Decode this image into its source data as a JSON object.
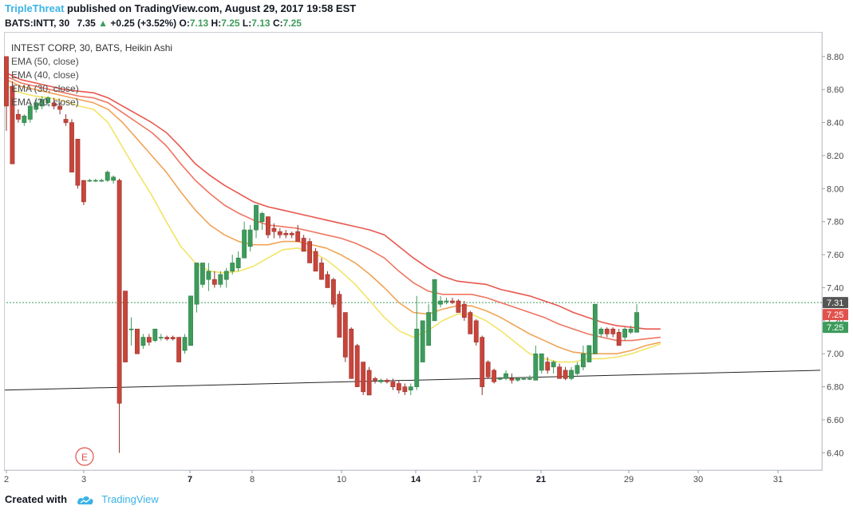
{
  "header": {
    "author": "TripleThreat",
    "published": "published on TradingView.com, August 29, 2017 19:58 EST"
  },
  "quote": {
    "symbol": "BATS:INTT, 30",
    "last": "7.35",
    "change": "+0.25 (+3.52%)",
    "open_label": "O:",
    "open": "7.13",
    "high_label": "H:",
    "high": "7.25",
    "low_label": "L:",
    "low": "7.13",
    "close_label": "C:",
    "close": "7.25"
  },
  "legend": {
    "title": "INTEST CORP, 30, BATS, Heikin Ashi",
    "items": [
      "EMA (50, close)",
      "EMA (40, close)",
      "EMA (30, close)",
      "EMA (20, close)"
    ]
  },
  "footer": {
    "created_with": "Created with",
    "brand": "TradingView"
  },
  "earnings_marker": "E",
  "price_badges": {
    "top": "7.31",
    "mid": "7.25",
    "bottom": "7.25"
  },
  "colors": {
    "up": "#3d9c5b",
    "down": "#c8453b",
    "ema50": "#e8574e",
    "ema40": "#ef7560",
    "ema30": "#f1a356",
    "ema20": "#f2e465",
    "badge_top": "#555555",
    "badge_mid": "#e0524b",
    "badge_bottom": "#3d9c5b"
  },
  "chart_data": {
    "type": "candlestick",
    "title": "INTEST CORP, 30, BATS, Heikin Ashi",
    "y_ticks": [
      "8.80",
      "8.60",
      "8.40",
      "8.20",
      "8.00",
      "7.80",
      "7.60",
      "7.40",
      "7.20",
      "7.00",
      "6.80",
      "6.60",
      "6.40"
    ],
    "ylim": [
      6.31,
      8.92
    ],
    "x_ticks": [
      "2",
      "3",
      "7",
      "8",
      "10",
      "14",
      "17",
      "21",
      "29",
      "30",
      "31"
    ],
    "grid": false,
    "candles": [
      {
        "o": 8.8,
        "h": 8.8,
        "l": 8.35,
        "c": 8.5
      },
      {
        "o": 8.62,
        "h": 8.65,
        "l": 8.15,
        "c": 8.15
      },
      {
        "o": 8.45,
        "h": 8.48,
        "l": 8.4,
        "c": 8.42
      },
      {
        "o": 8.4,
        "h": 8.45,
        "l": 8.38,
        "c": 8.44
      },
      {
        "o": 8.42,
        "h": 8.52,
        "l": 8.4,
        "c": 8.5
      },
      {
        "o": 8.48,
        "h": 8.55,
        "l": 8.46,
        "c": 8.52
      },
      {
        "o": 8.5,
        "h": 8.56,
        "l": 8.48,
        "c": 8.54
      },
      {
        "o": 8.52,
        "h": 8.56,
        "l": 8.5,
        "c": 8.55
      },
      {
        "o": 8.52,
        "h": 8.55,
        "l": 8.48,
        "c": 8.5
      },
      {
        "o": 8.5,
        "h": 8.52,
        "l": 8.45,
        "c": 8.48
      },
      {
        "o": 8.42,
        "h": 8.45,
        "l": 8.38,
        "c": 8.4
      },
      {
        "o": 8.4,
        "h": 8.42,
        "l": 8.1,
        "c": 8.1
      },
      {
        "o": 8.3,
        "h": 8.3,
        "l": 8.0,
        "c": 8.02
      },
      {
        "o": 8.05,
        "h": 8.05,
        "l": 7.9,
        "c": 7.92
      },
      {
        "o": 8.05,
        "h": 8.06,
        "l": 8.04,
        "c": 8.05
      },
      {
        "o": 8.05,
        "h": 8.06,
        "l": 8.04,
        "c": 8.05
      },
      {
        "o": 8.05,
        "h": 8.06,
        "l": 8.04,
        "c": 8.05
      },
      {
        "o": 8.05,
        "h": 8.11,
        "l": 8.04,
        "c": 8.1
      },
      {
        "o": 8.05,
        "h": 8.08,
        "l": 8.03,
        "c": 8.07
      },
      {
        "o": 8.05,
        "h": 8.06,
        "l": 6.4,
        "c": 6.7
      },
      {
        "o": 7.38,
        "h": 7.38,
        "l": 6.95,
        "c": 6.95
      },
      {
        "o": 7.15,
        "h": 7.22,
        "l": 7.05,
        "c": 7.15
      },
      {
        "o": 7.15,
        "h": 7.15,
        "l": 7.0,
        "c": 7.0
      },
      {
        "o": 7.05,
        "h": 7.12,
        "l": 7.03,
        "c": 7.1
      },
      {
        "o": 7.1,
        "h": 7.12,
        "l": 7.05,
        "c": 7.07
      },
      {
        "o": 7.08,
        "h": 7.15,
        "l": 7.07,
        "c": 7.15
      },
      {
        "o": 7.1,
        "h": 7.12,
        "l": 7.08,
        "c": 7.1
      },
      {
        "o": 7.1,
        "h": 7.11,
        "l": 7.08,
        "c": 7.09
      },
      {
        "o": 7.1,
        "h": 7.11,
        "l": 7.08,
        "c": 7.09
      },
      {
        "o": 7.1,
        "h": 7.1,
        "l": 6.95,
        "c": 6.95
      },
      {
        "o": 7.02,
        "h": 7.12,
        "l": 7.0,
        "c": 7.1
      },
      {
        "o": 7.05,
        "h": 7.35,
        "l": 7.05,
        "c": 7.35
      },
      {
        "o": 7.3,
        "h": 7.55,
        "l": 7.25,
        "c": 7.55
      },
      {
        "o": 7.42,
        "h": 7.55,
        "l": 7.4,
        "c": 7.55
      },
      {
        "o": 7.45,
        "h": 7.55,
        "l": 7.38,
        "c": 7.5
      },
      {
        "o": 7.45,
        "h": 7.5,
        "l": 7.4,
        "c": 7.42
      },
      {
        "o": 7.42,
        "h": 7.5,
        "l": 7.4,
        "c": 7.48
      },
      {
        "o": 7.45,
        "h": 7.52,
        "l": 7.4,
        "c": 7.5
      },
      {
        "o": 7.5,
        "h": 7.6,
        "l": 7.48,
        "c": 7.55
      },
      {
        "o": 7.52,
        "h": 7.62,
        "l": 7.5,
        "c": 7.58
      },
      {
        "o": 7.58,
        "h": 7.8,
        "l": 7.58,
        "c": 7.75
      },
      {
        "o": 7.65,
        "h": 7.78,
        "l": 7.62,
        "c": 7.75
      },
      {
        "o": 7.75,
        "h": 7.9,
        "l": 7.7,
        "c": 7.9
      },
      {
        "o": 7.8,
        "h": 7.86,
        "l": 7.75,
        "c": 7.85
      },
      {
        "o": 7.83,
        "h": 7.83,
        "l": 7.7,
        "c": 7.72
      },
      {
        "o": 7.76,
        "h": 7.79,
        "l": 7.7,
        "c": 7.74
      },
      {
        "o": 7.74,
        "h": 7.76,
        "l": 7.7,
        "c": 7.72
      },
      {
        "o": 7.73,
        "h": 7.75,
        "l": 7.7,
        "c": 7.72
      },
      {
        "o": 7.73,
        "h": 7.74,
        "l": 7.7,
        "c": 7.72
      },
      {
        "o": 7.74,
        "h": 7.78,
        "l": 7.68,
        "c": 7.68
      },
      {
        "o": 7.7,
        "h": 7.72,
        "l": 7.62,
        "c": 7.62
      },
      {
        "o": 7.68,
        "h": 7.7,
        "l": 7.55,
        "c": 7.55
      },
      {
        "o": 7.62,
        "h": 7.64,
        "l": 7.5,
        "c": 7.5
      },
      {
        "o": 7.55,
        "h": 7.58,
        "l": 7.45,
        "c": 7.45
      },
      {
        "o": 7.48,
        "h": 7.5,
        "l": 7.4,
        "c": 7.4
      },
      {
        "o": 7.45,
        "h": 7.46,
        "l": 7.28,
        "c": 7.3
      },
      {
        "o": 7.36,
        "h": 7.38,
        "l": 7.1,
        "c": 7.1
      },
      {
        "o": 7.25,
        "h": 7.25,
        "l": 6.95,
        "c": 6.98
      },
      {
        "o": 7.15,
        "h": 7.16,
        "l": 6.85,
        "c": 6.85
      },
      {
        "o": 7.05,
        "h": 7.06,
        "l": 6.8,
        "c": 6.8
      },
      {
        "o": 6.95,
        "h": 6.95,
        "l": 6.75,
        "c": 6.77
      },
      {
        "o": 6.9,
        "h": 6.92,
        "l": 6.75,
        "c": 6.75
      },
      {
        "o": 6.85,
        "h": 6.86,
        "l": 6.82,
        "c": 6.84
      },
      {
        "o": 6.83,
        "h": 6.85,
        "l": 6.82,
        "c": 6.84
      },
      {
        "o": 6.84,
        "h": 6.85,
        "l": 6.82,
        "c": 6.83
      },
      {
        "o": 6.83,
        "h": 6.85,
        "l": 6.78,
        "c": 6.8
      },
      {
        "o": 6.82,
        "h": 6.84,
        "l": 6.76,
        "c": 6.78
      },
      {
        "o": 6.8,
        "h": 6.82,
        "l": 6.75,
        "c": 6.77
      },
      {
        "o": 6.78,
        "h": 6.82,
        "l": 6.75,
        "c": 6.8
      },
      {
        "o": 6.8,
        "h": 7.35,
        "l": 6.78,
        "c": 7.15
      },
      {
        "o": 6.95,
        "h": 7.2,
        "l": 6.95,
        "c": 7.2
      },
      {
        "o": 7.05,
        "h": 7.3,
        "l": 7.05,
        "c": 7.25
      },
      {
        "o": 7.2,
        "h": 7.45,
        "l": 7.2,
        "c": 7.45
      },
      {
        "o": 7.3,
        "h": 7.35,
        "l": 7.28,
        "c": 7.32
      },
      {
        "o": 7.32,
        "h": 7.34,
        "l": 7.3,
        "c": 7.32
      },
      {
        "o": 7.32,
        "h": 7.34,
        "l": 7.3,
        "c": 7.31
      },
      {
        "o": 7.32,
        "h": 7.33,
        "l": 7.25,
        "c": 7.25
      },
      {
        "o": 7.3,
        "h": 7.32,
        "l": 7.2,
        "c": 7.22
      },
      {
        "o": 7.25,
        "h": 7.26,
        "l": 7.12,
        "c": 7.12
      },
      {
        "o": 7.2,
        "h": 7.21,
        "l": 7.05,
        "c": 7.07
      },
      {
        "o": 7.1,
        "h": 7.11,
        "l": 6.75,
        "c": 6.8
      },
      {
        "o": 6.95,
        "h": 6.96,
        "l": 6.85,
        "c": 6.86
      },
      {
        "o": 6.9,
        "h": 6.91,
        "l": 6.82,
        "c": 6.83
      },
      {
        "o": 6.85,
        "h": 6.86,
        "l": 6.84,
        "c": 6.85
      },
      {
        "o": 6.85,
        "h": 6.9,
        "l": 6.84,
        "c": 6.88
      },
      {
        "o": 6.85,
        "h": 6.88,
        "l": 6.82,
        "c": 6.84
      },
      {
        "o": 6.84,
        "h": 6.86,
        "l": 6.83,
        "c": 6.85
      },
      {
        "o": 6.85,
        "h": 6.86,
        "l": 6.84,
        "c": 6.85
      },
      {
        "o": 6.85,
        "h": 6.87,
        "l": 6.84,
        "c": 6.85
      },
      {
        "o": 6.84,
        "h": 7.05,
        "l": 6.84,
        "c": 7.0
      },
      {
        "o": 6.9,
        "h": 7.0,
        "l": 6.88,
        "c": 7.0
      },
      {
        "o": 6.95,
        "h": 6.98,
        "l": 6.88,
        "c": 6.9
      },
      {
        "o": 6.92,
        "h": 6.96,
        "l": 6.88,
        "c": 6.95
      },
      {
        "o": 6.92,
        "h": 6.94,
        "l": 6.85,
        "c": 6.85
      },
      {
        "o": 6.9,
        "h": 6.92,
        "l": 6.84,
        "c": 6.85
      },
      {
        "o": 6.85,
        "h": 6.92,
        "l": 6.84,
        "c": 6.9
      },
      {
        "o": 6.88,
        "h": 6.95,
        "l": 6.87,
        "c": 6.93
      },
      {
        "o": 6.92,
        "h": 7.05,
        "l": 6.9,
        "c": 7.0
      },
      {
        "o": 6.95,
        "h": 7.05,
        "l": 6.95,
        "c": 7.05
      },
      {
        "o": 7.0,
        "h": 7.3,
        "l": 7.0,
        "c": 7.3
      },
      {
        "o": 7.12,
        "h": 7.16,
        "l": 7.1,
        "c": 7.15
      },
      {
        "o": 7.15,
        "h": 7.16,
        "l": 7.1,
        "c": 7.12
      },
      {
        "o": 7.15,
        "h": 7.16,
        "l": 7.1,
        "c": 7.12
      },
      {
        "o": 7.13,
        "h": 7.15,
        "l": 7.05,
        "c": 7.05
      },
      {
        "o": 7.1,
        "h": 7.16,
        "l": 7.08,
        "c": 7.15
      },
      {
        "o": 7.13,
        "h": 7.17,
        "l": 7.12,
        "c": 7.15
      },
      {
        "o": 7.13,
        "h": 7.3,
        "l": 7.13,
        "c": 7.25
      }
    ],
    "series": [
      {
        "name": "EMA (50, close)",
        "values": [
          8.7,
          8.66,
          8.64,
          8.62,
          8.6,
          8.59,
          8.58,
          8.55,
          8.5,
          8.45,
          8.4,
          8.34,
          8.25,
          8.15,
          8.08,
          8.02,
          7.97,
          7.92,
          7.89,
          7.87,
          7.85,
          7.83,
          7.81,
          7.79,
          7.77,
          7.75,
          7.72,
          7.65,
          7.58,
          7.52,
          7.47,
          7.44,
          7.43,
          7.42,
          7.39,
          7.37,
          7.35,
          7.32,
          7.29,
          7.25,
          7.22,
          7.19,
          7.17,
          7.16,
          7.15,
          7.15
        ],
        "x_from": 0,
        "x_to": 110
      },
      {
        "name": "EMA (40, close)",
        "values": [
          8.68,
          8.64,
          8.62,
          8.6,
          8.58,
          8.56,
          8.55,
          8.52,
          8.46,
          8.4,
          8.34,
          8.26,
          8.15,
          8.05,
          7.97,
          7.9,
          7.85,
          7.81,
          7.78,
          7.77,
          7.76,
          7.74,
          7.72,
          7.7,
          7.67,
          7.63,
          7.58,
          7.5,
          7.43,
          7.38,
          7.36,
          7.36,
          7.36,
          7.34,
          7.31,
          7.28,
          7.25,
          7.22,
          7.18,
          7.15,
          7.12,
          7.1,
          7.08,
          7.08,
          7.09,
          7.1
        ],
        "x_from": 0,
        "x_to": 110
      },
      {
        "name": "EMA (30, close)",
        "values": [
          8.66,
          8.62,
          8.6,
          8.58,
          8.56,
          8.54,
          8.52,
          8.48,
          8.4,
          8.3,
          8.2,
          8.1,
          7.98,
          7.87,
          7.78,
          7.72,
          7.68,
          7.66,
          7.66,
          7.68,
          7.68,
          7.66,
          7.64,
          7.6,
          7.55,
          7.48,
          7.4,
          7.31,
          7.25,
          7.24,
          7.27,
          7.29,
          7.29,
          7.26,
          7.22,
          7.17,
          7.12,
          7.08,
          7.04,
          7.01,
          7.0,
          7.0,
          7.0,
          7.02,
          7.05,
          7.07
        ],
        "x_from": 0,
        "x_to": 110
      },
      {
        "name": "EMA (20, close)",
        "values": [
          8.62,
          8.58,
          8.56,
          8.55,
          8.53,
          8.5,
          8.48,
          8.4,
          8.25,
          8.1,
          7.96,
          7.8,
          7.65,
          7.55,
          7.5,
          7.49,
          7.5,
          7.53,
          7.58,
          7.63,
          7.64,
          7.62,
          7.57,
          7.5,
          7.42,
          7.32,
          7.22,
          7.14,
          7.1,
          7.14,
          7.2,
          7.24,
          7.24,
          7.2,
          7.14,
          7.07,
          7.0,
          6.97,
          6.95,
          6.95,
          6.97,
          6.97,
          6.98,
          7.0,
          7.03,
          7.06
        ],
        "x_from": 0,
        "x_to": 110
      }
    ],
    "last_price": 7.25,
    "reference_price": 7.31
  }
}
